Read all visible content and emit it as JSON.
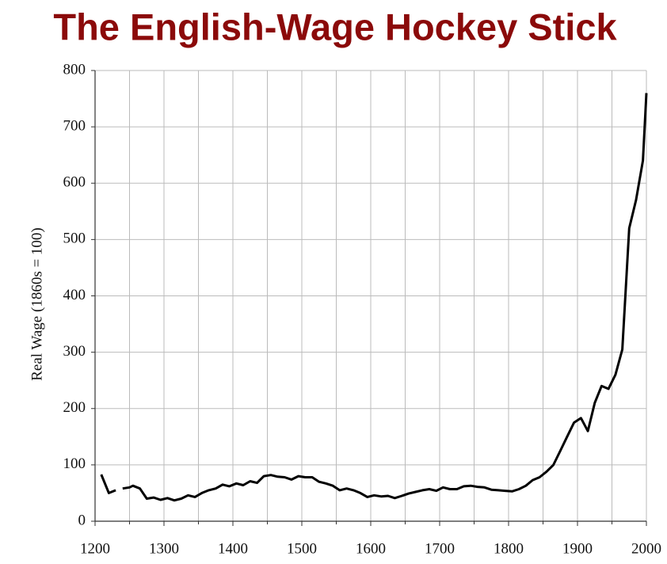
{
  "chart_data": {
    "type": "line",
    "title": "The English-Wage Hockey Stick",
    "y_label": "Real Wage (1860s = 100)",
    "x": [
      1209,
      1220,
      1230,
      1235,
      1240,
      1250,
      1255,
      1265,
      1275,
      1285,
      1295,
      1305,
      1315,
      1325,
      1335,
      1345,
      1355,
      1365,
      1375,
      1385,
      1395,
      1405,
      1415,
      1425,
      1435,
      1445,
      1455,
      1465,
      1475,
      1485,
      1495,
      1505,
      1515,
      1525,
      1535,
      1545,
      1555,
      1565,
      1575,
      1585,
      1595,
      1605,
      1615,
      1625,
      1635,
      1645,
      1655,
      1665,
      1675,
      1685,
      1695,
      1705,
      1715,
      1725,
      1735,
      1745,
      1755,
      1765,
      1775,
      1785,
      1795,
      1805,
      1815,
      1825,
      1835,
      1845,
      1855,
      1865,
      1875,
      1885,
      1895,
      1905,
      1915,
      1925,
      1935,
      1945,
      1955,
      1965,
      1975,
      1985,
      1995,
      2000
    ],
    "series": [
      {
        "color": "#000000",
        "values": [
          83,
          50,
          55,
          null,
          58,
          60,
          63,
          58,
          40,
          42,
          38,
          41,
          37,
          40,
          46,
          43,
          50,
          55,
          58,
          65,
          62,
          67,
          64,
          71,
          68,
          80,
          82,
          79,
          78,
          74,
          80,
          78,
          78,
          70,
          67,
          63,
          55,
          58,
          55,
          50,
          43,
          46,
          44,
          45,
          41,
          45,
          49,
          52,
          55,
          57,
          54,
          60,
          57,
          57,
          62,
          63,
          61,
          60,
          56,
          55,
          54,
          53,
          57,
          63,
          73,
          78,
          88,
          100,
          125,
          150,
          175,
          183,
          160,
          210,
          240,
          235,
          260,
          305,
          520,
          570,
          640,
          760
        ]
      }
    ],
    "xlim": [
      1200,
      2000
    ],
    "xticks": [
      1200,
      1300,
      1400,
      1500,
      1600,
      1700,
      1800,
      1900,
      2000
    ],
    "xminorticks": [
      1250,
      1350,
      1450,
      1550,
      1650,
      1750,
      1850,
      1950
    ],
    "ylim": [
      0,
      800
    ],
    "yticks": [
      0,
      100,
      200,
      300,
      400,
      500,
      600,
      700,
      800
    ],
    "grid": true,
    "title_color": "#8b0a0a"
  }
}
